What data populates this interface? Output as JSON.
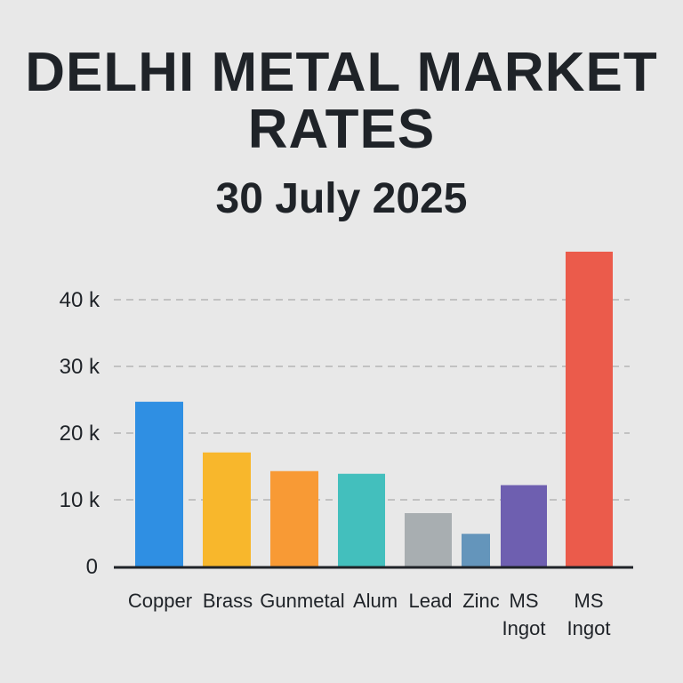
{
  "title_line1": "DELHI METAL MARKET",
  "title_line2": "RATES",
  "subtitle": "30 July 2025",
  "chart_data": {
    "type": "bar",
    "title": "DELHI METAL MARKET RATES",
    "subtitle": "30 July 2025",
    "xlabel": "",
    "ylabel": "",
    "grid": true,
    "ylim": [
      0,
      45000
    ],
    "yticks": [
      {
        "value": 0,
        "label": "0"
      },
      {
        "value": 10000,
        "label": "10 k"
      },
      {
        "value": 20000,
        "label": "20 k"
      },
      {
        "value": 30000,
        "label": "30 k"
      },
      {
        "value": 40000,
        "label": "40 k"
      }
    ],
    "bars": [
      {
        "label": [
          "Copper"
        ],
        "value": 24700,
        "color": "#2f8fe3"
      },
      {
        "label": [
          "Brass"
        ],
        "value": 17100,
        "color": "#f8b72c"
      },
      {
        "label": [
          "Gunmetal"
        ],
        "value": 14300,
        "color": "#f89a35"
      },
      {
        "label": [
          "Alum"
        ],
        "value": 13900,
        "color": "#43bfbd"
      },
      {
        "label": [
          "Lead"
        ],
        "value": 8000,
        "color": "#a8aeb1"
      },
      {
        "label": [
          "Zinc"
        ],
        "value": 4900,
        "color": "#6495bb"
      },
      {
        "label": [
          "MS",
          "Ingot"
        ],
        "value": 12200,
        "color": "#6e5fb0"
      },
      {
        "label": [
          "MS",
          "Ingot"
        ],
        "value": 47200,
        "color": "#eb5b4b"
      }
    ]
  }
}
